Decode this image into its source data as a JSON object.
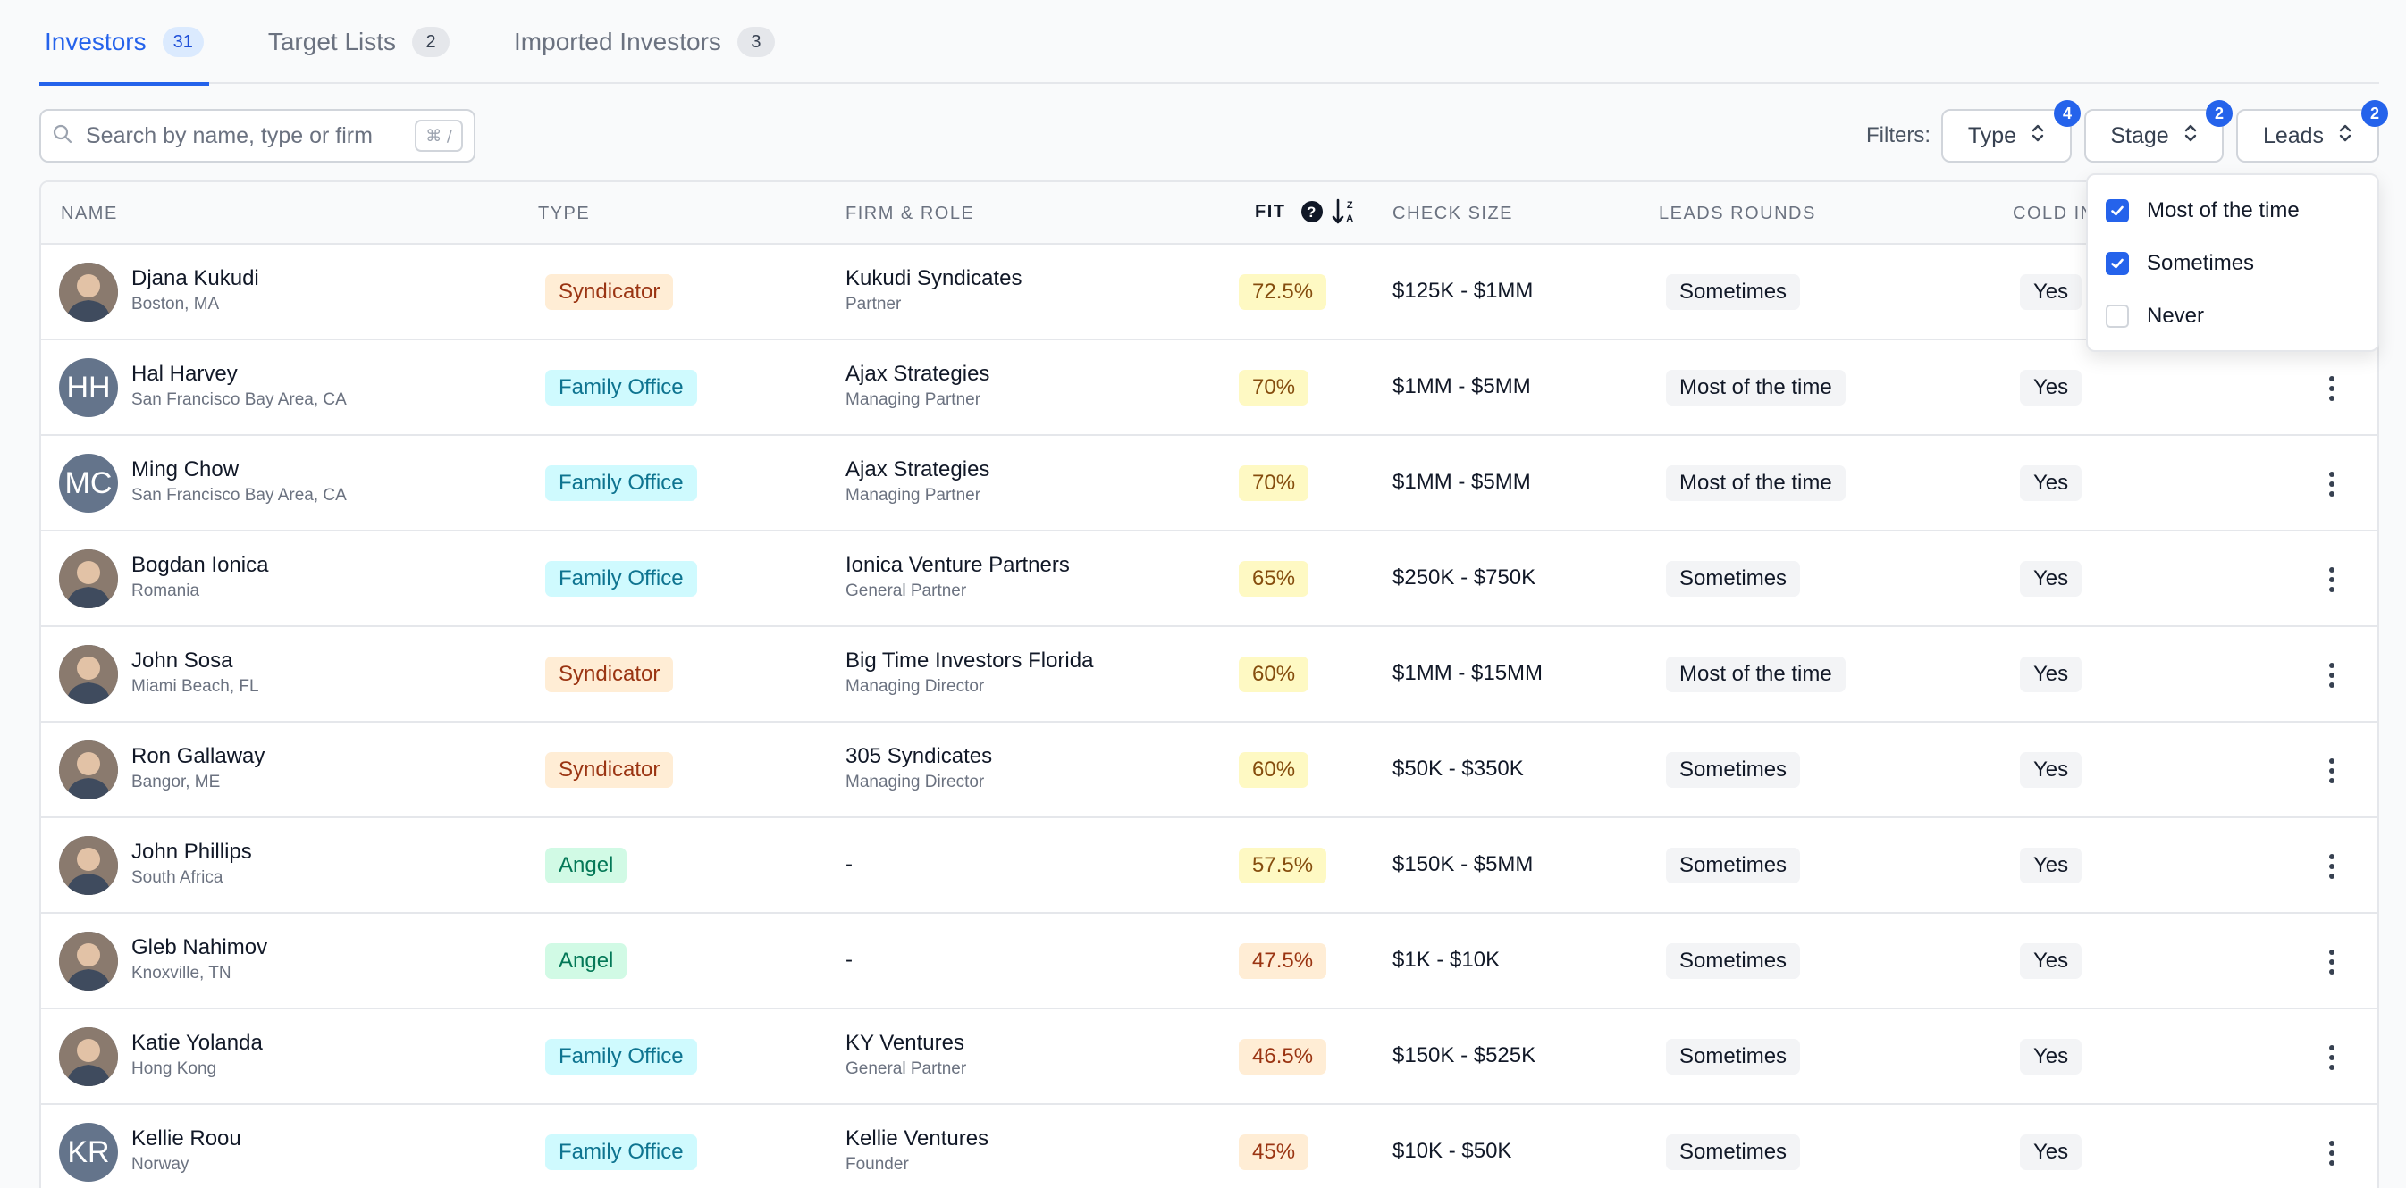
{
  "tabs": [
    {
      "label": "Investors",
      "count": "31"
    },
    {
      "label": "Target Lists",
      "count": "2"
    },
    {
      "label": "Imported Investors",
      "count": "3"
    }
  ],
  "search": {
    "placeholder": "Search by name, type or firm",
    "shortcut": "⌘ /"
  },
  "filters": {
    "label": "Filters:",
    "type": {
      "label": "Type",
      "badge": "4"
    },
    "stage": {
      "label": "Stage",
      "badge": "2"
    },
    "leads": {
      "label": "Leads",
      "badge": "2"
    }
  },
  "columns": {
    "name": "NAME",
    "type": "TYPE",
    "firm_role": "FIRM & ROLE",
    "fit": "FIT",
    "check_size": "CHECK SIZE",
    "leads_rounds": "LEADS ROUNDS",
    "cold": "COLD IN"
  },
  "dropdown": {
    "options": [
      {
        "label": "Most of the time",
        "checked": true
      },
      {
        "label": "Sometimes",
        "checked": true
      },
      {
        "label": "Never",
        "checked": false
      }
    ]
  },
  "colors": {
    "accent": "#2563eb"
  },
  "rows": [
    {
      "name": "Djana Kukudi",
      "location": "Boston, MA",
      "type": "Syndicator",
      "firm": "Kukudi Syndicates",
      "role": "Partner",
      "fit": "72.5%",
      "check": "$125K - $1MM",
      "leads": "Sometimes",
      "cold": "Yes"
    },
    {
      "name": "Hal Harvey",
      "initials": "HH",
      "location": "San Francisco Bay Area, CA",
      "type": "Family Office",
      "firm": "Ajax Strategies",
      "role": "Managing Partner",
      "fit": "70%",
      "check": "$1MM - $5MM",
      "leads": "Most of the time",
      "cold": "Yes"
    },
    {
      "name": "Ming Chow",
      "initials": "MC",
      "location": "San Francisco Bay Area, CA",
      "type": "Family Office",
      "firm": "Ajax Strategies",
      "role": "Managing Partner",
      "fit": "70%",
      "check": "$1MM - $5MM",
      "leads": "Most of the time",
      "cold": "Yes"
    },
    {
      "name": "Bogdan Ionica",
      "location": "Romania",
      "type": "Family Office",
      "firm": "Ionica Venture Partners",
      "role": "General Partner",
      "fit": "65%",
      "check": "$250K - $750K",
      "leads": "Sometimes",
      "cold": "Yes"
    },
    {
      "name": "John Sosa",
      "location": "Miami Beach, FL",
      "type": "Syndicator",
      "firm": "Big Time Investors Florida",
      "role": "Managing Director",
      "fit": "60%",
      "check": "$1MM - $15MM",
      "leads": "Most of the time",
      "cold": "Yes"
    },
    {
      "name": "Ron Gallaway",
      "location": "Bangor, ME",
      "type": "Syndicator",
      "firm": "305 Syndicates",
      "role": "Managing Director",
      "fit": "60%",
      "check": "$50K - $350K",
      "leads": "Sometimes",
      "cold": "Yes"
    },
    {
      "name": "John Phillips",
      "location": "South Africa",
      "type": "Angel",
      "firm": "-",
      "role": "",
      "fit": "57.5%",
      "check": "$150K - $5MM",
      "leads": "Sometimes",
      "cold": "Yes"
    },
    {
      "name": "Gleb Nahimov",
      "location": "Knoxville, TN",
      "type": "Angel",
      "firm": "-",
      "role": "",
      "fit": "47.5%",
      "check": "$1K - $10K",
      "leads": "Sometimes",
      "cold": "Yes"
    },
    {
      "name": "Katie Yolanda",
      "location": "Hong Kong",
      "type": "Family Office",
      "firm": "KY Ventures",
      "role": "General Partner",
      "fit": "46.5%",
      "check": "$150K - $525K",
      "leads": "Sometimes",
      "cold": "Yes"
    },
    {
      "name": "Kellie Roou",
      "initials": "KR",
      "location": "Norway",
      "type": "Family Office",
      "firm": "Kellie Ventures",
      "role": "Founder",
      "fit": "45%",
      "check": "$10K - $50K",
      "leads": "Sometimes",
      "cold": "Yes"
    }
  ]
}
